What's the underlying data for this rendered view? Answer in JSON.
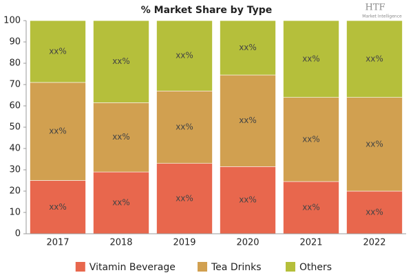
{
  "chart_data": {
    "type": "stacked_bar",
    "title": "% Market Share by Type",
    "logo": {
      "text": "HTF",
      "subtitle": "Market Intelligence"
    },
    "categories": [
      "2017",
      "2018",
      "2019",
      "2020",
      "2021",
      "2022"
    ],
    "series": [
      {
        "name": "Vitamin Beverage",
        "color": "#e8674d",
        "values": [
          25,
          29,
          33,
          31.5,
          24.5,
          20
        ],
        "value_labels": [
          "xx%",
          "xx%",
          "xx%",
          "xx%",
          "xx%",
          "xx%"
        ]
      },
      {
        "name": "Tea Drinks",
        "color": "#d1a050",
        "values": [
          46,
          32.5,
          34,
          43,
          39.5,
          44
        ],
        "value_labels": [
          "xx%",
          "xx%",
          "xx%",
          "xx%",
          "xx%",
          "xx%"
        ]
      },
      {
        "name": "Others",
        "color": "#b5bf3b",
        "values": [
          29,
          38.5,
          33,
          25.5,
          36,
          36
        ],
        "value_labels": [
          "xx%",
          "xx%",
          "xx%",
          "xx%",
          "xx%",
          "xx%"
        ]
      }
    ],
    "ylim": [
      0,
      100
    ],
    "yticks": [
      0,
      10,
      20,
      30,
      40,
      50,
      60,
      70,
      80,
      90,
      100
    ],
    "legend": "bottom"
  }
}
